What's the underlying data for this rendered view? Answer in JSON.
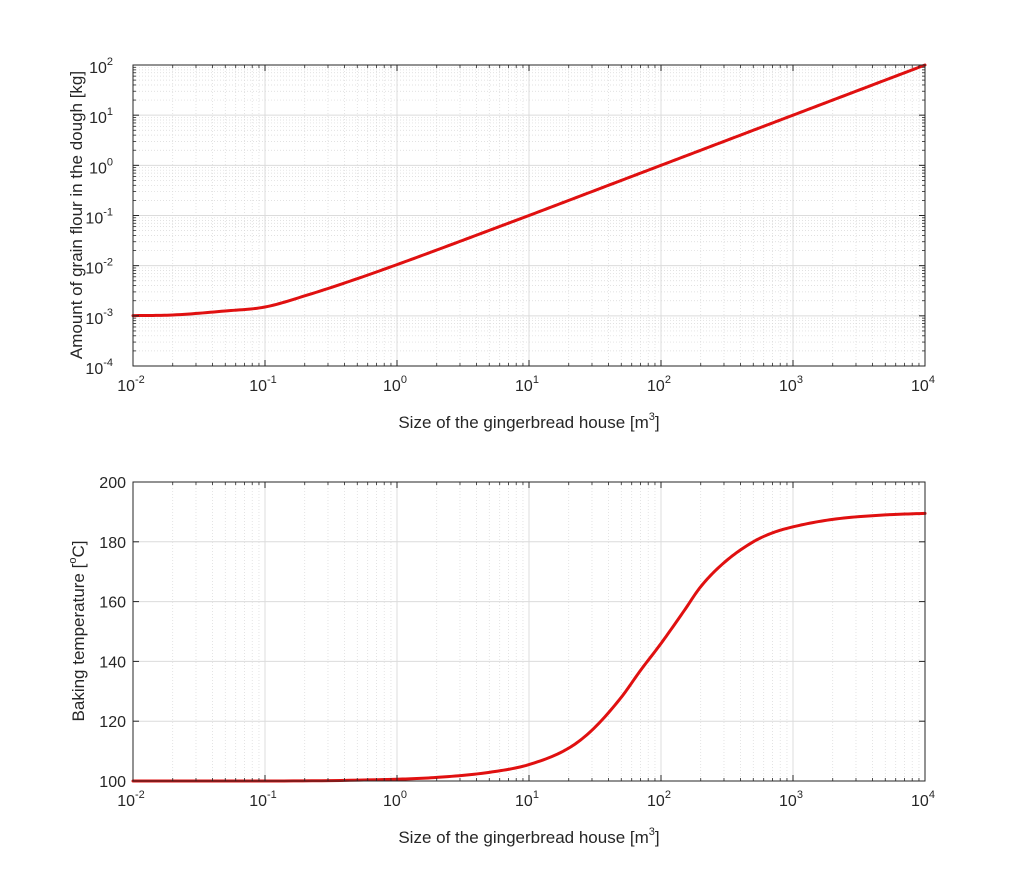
{
  "chart_data": [
    {
      "type": "line",
      "xlabel": "Size of the gingerbread house [m",
      "xlabel_sup": "3",
      "xlabel_end": "]",
      "ylabel": "Amount of grain flour in the dough [kg]",
      "xscale": "log",
      "yscale": "log",
      "xlim": [
        0.01,
        10000
      ],
      "ylim": [
        0.0001,
        100
      ],
      "grid": true,
      "minor_grid": true,
      "line_color": "#e01010",
      "x_ticks": [
        {
          "base": "10",
          "exp": "-2"
        },
        {
          "base": "10",
          "exp": "-1"
        },
        {
          "base": "10",
          "exp": "0"
        },
        {
          "base": "10",
          "exp": "1"
        },
        {
          "base": "10",
          "exp": "2"
        },
        {
          "base": "10",
          "exp": "3"
        },
        {
          "base": "10",
          "exp": "4"
        }
      ],
      "y_ticks": [
        {
          "base": "10",
          "exp": "-4"
        },
        {
          "base": "10",
          "exp": "-3"
        },
        {
          "base": "10",
          "exp": "-2"
        },
        {
          "base": "10",
          "exp": "-1"
        },
        {
          "base": "10",
          "exp": "0"
        },
        {
          "base": "10",
          "exp": "1"
        },
        {
          "base": "10",
          "exp": "2"
        }
      ],
      "series": [
        {
          "x": [
            0.01,
            0.02,
            0.05,
            0.1,
            0.2,
            0.5,
            1,
            2,
            5,
            10,
            20,
            50,
            100,
            200,
            500,
            1000,
            2000,
            5000,
            10000
          ],
          "y": [
            0.00101,
            0.00104,
            0.00125,
            0.0015,
            0.0025,
            0.0055,
            0.0105,
            0.0205,
            0.0505,
            0.1,
            0.2,
            0.5,
            1,
            2,
            5,
            10,
            20,
            50,
            100
          ]
        }
      ]
    },
    {
      "type": "line",
      "xlabel": "Size of the gingerbread house [m",
      "xlabel_sup": "3",
      "xlabel_end": "]",
      "ylabel": "Baking temperature [",
      "ylabel_sup": "o",
      "ylabel_end": "C]",
      "xscale": "log",
      "yscale": "linear",
      "xlim": [
        0.01,
        10000
      ],
      "ylim": [
        100,
        200
      ],
      "grid": true,
      "minor_grid_x": true,
      "line_color": "#e01010",
      "x_ticks": [
        {
          "base": "10",
          "exp": "-2"
        },
        {
          "base": "10",
          "exp": "-1"
        },
        {
          "base": "10",
          "exp": "0"
        },
        {
          "base": "10",
          "exp": "1"
        },
        {
          "base": "10",
          "exp": "2"
        },
        {
          "base": "10",
          "exp": "3"
        },
        {
          "base": "10",
          "exp": "4"
        }
      ],
      "y_ticks": [
        "100",
        "120",
        "140",
        "160",
        "180",
        "200"
      ],
      "series": [
        {
          "x": [
            0.01,
            0.1,
            1,
            2,
            5,
            10,
            20,
            30,
            50,
            70,
            100,
            150,
            200,
            300,
            500,
            700,
            1000,
            2000,
            5000,
            10000
          ],
          "y": [
            100,
            100,
            100.6,
            101.2,
            102.9,
            105.5,
            111,
            117,
            128,
            137,
            146,
            157,
            165,
            173,
            180,
            183,
            185,
            187.5,
            189,
            189.5
          ]
        }
      ]
    }
  ]
}
